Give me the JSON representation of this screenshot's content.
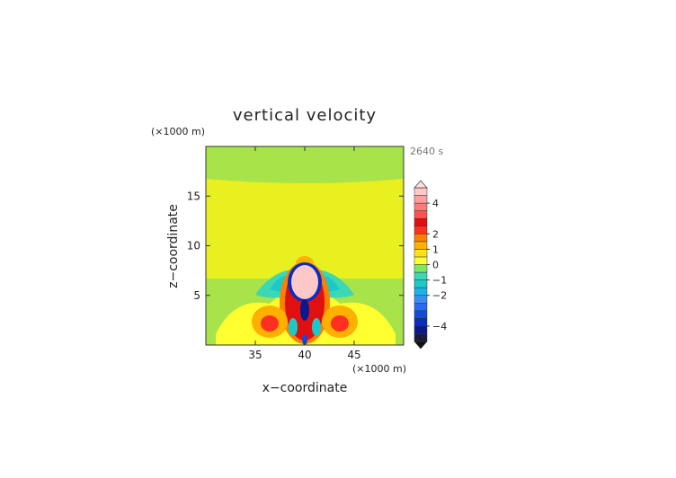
{
  "chart_data": {
    "type": "heatmap",
    "title": "vertical velocity",
    "time_label": "2640 s",
    "xlabel": "x−coordinate",
    "ylabel": "z−coordinate",
    "x_unit": "(×1000 m)",
    "y_unit": "(×1000 m)",
    "xlim": [
      30,
      50
    ],
    "ylim": [
      0,
      20
    ],
    "x_ticks": [
      35,
      40,
      45
    ],
    "y_ticks": [
      5,
      10,
      15
    ],
    "colorbar": {
      "levels": [
        -5,
        -4.5,
        -4,
        -3.5,
        -3,
        -2.5,
        -2,
        -1.5,
        -1,
        -0.5,
        0,
        0.5,
        1,
        1.5,
        2,
        2.5,
        3,
        3.5,
        4,
        4.5,
        5
      ],
      "colors": [
        "#1a1a3a",
        "#0a1890",
        "#0a2cc0",
        "#1448e0",
        "#2a6af0",
        "#3c8cf4",
        "#1ab4e8",
        "#1cc8c8",
        "#3cd8b4",
        "#80e860",
        "#ffff30",
        "#ffe020",
        "#ffb000",
        "#ff8000",
        "#ff3020",
        "#e01010",
        "#ff5050",
        "#ff7a7a",
        "#ff9e9e",
        "#ffc8c8"
      ],
      "labels": [
        "4",
        "2",
        "1",
        "0",
        "−1",
        "−2",
        "−4"
      ],
      "label_values": [
        4,
        2,
        1,
        0,
        -1,
        -2,
        -4
      ]
    },
    "grid": false
  }
}
